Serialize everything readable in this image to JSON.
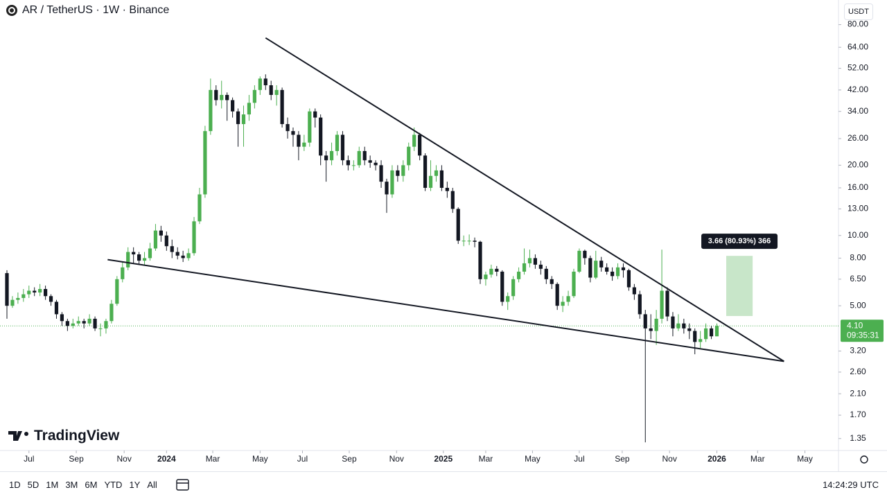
{
  "header": {
    "title": "AR / TetherUS · 1W · Binance",
    "currency": "USDT"
  },
  "brand": "TradingView",
  "toolbar": {
    "ranges": [
      "1D",
      "5D",
      "1M",
      "3M",
      "6M",
      "YTD",
      "1Y",
      "All"
    ],
    "clock": "14:24:29 UTC"
  },
  "chart_data": {
    "type": "candlestick",
    "log_scale": true,
    "up_color": "#4caf50",
    "down_color": "#131722",
    "open": [
      6.9,
      5.0,
      5.3,
      5.4,
      5.6,
      5.8,
      5.7,
      5.9,
      5.5,
      5.2,
      4.6,
      4.3,
      4.1,
      4.2,
      4.3,
      4.2,
      4.4,
      4.0,
      4.0,
      4.3,
      5.1,
      6.5,
      7.3,
      8.5,
      8.3,
      7.8,
      8.0,
      8.8,
      10.5,
      10.0,
      9.0,
      8.5,
      8.2,
      8.0,
      8.4,
      11.5,
      15,
      28,
      42,
      38,
      40,
      38,
      34,
      30,
      33,
      37,
      42,
      47,
      44,
      40,
      42,
      30,
      28,
      27,
      24,
      25,
      34,
      32,
      22,
      21,
      23,
      27,
      21,
      20,
      20,
      23,
      21,
      20.5,
      20,
      17,
      15,
      19,
      18,
      20,
      24,
      27,
      22,
      16,
      18,
      19,
      16,
      15.5,
      13,
      9.5,
      9.5,
      9.5,
      9.4,
      6.5,
      6.8,
      7.2,
      7.0,
      5.2,
      5.5,
      6.5,
      7.0,
      7.6,
      8.0,
      7.5,
      7.2,
      6.5,
      6.2,
      5.0,
      5.2,
      5.5,
      7.0,
      8.6,
      8.0,
      6.6,
      7.8,
      7.3,
      7.0,
      6.7,
      7.3,
      7.1,
      6.0,
      5.6,
      4.6,
      4.0,
      3.9,
      4.4,
      5.8,
      4.5,
      4.0,
      4.2,
      4.0,
      3.9,
      3.5,
      3.6,
      4.0,
      3.7
    ],
    "high": [
      7.1,
      5.5,
      5.7,
      5.9,
      6.1,
      6.0,
      6.2,
      6.1,
      5.6,
      5.3,
      4.7,
      4.4,
      4.4,
      4.5,
      4.4,
      4.6,
      4.5,
      4.2,
      4.4,
      5.3,
      6.7,
      7.7,
      8.9,
      8.9,
      8.5,
      8.5,
      9.3,
      11.2,
      11.0,
      10.4,
      9.6,
      8.9,
      8.6,
      8.8,
      12.0,
      16,
      29.5,
      47,
      44,
      46,
      41,
      39,
      35,
      36,
      40,
      44,
      48,
      49,
      46,
      44,
      43,
      32,
      29,
      28,
      27,
      35,
      35,
      33,
      23,
      25,
      28,
      28,
      22,
      21,
      24,
      24,
      22,
      21,
      21,
      17.5,
      20,
      20,
      21,
      25,
      29,
      27.5,
      22.5,
      21,
      20,
      20,
      17,
      16,
      13.2,
      10,
      10.1,
      9.8,
      9.5,
      7.0,
      7.5,
      7.4,
      7.1,
      5.7,
      6.7,
      7.3,
      8.8,
      8.7,
      8.3,
      7.8,
      7.4,
      6.7,
      6.3,
      5.5,
      5.8,
      7.2,
      8.8,
      8.7,
      8.2,
      8.6,
      8.1,
      7.6,
      7.3,
      7.6,
      7.6,
      7.2,
      6.2,
      5.8,
      4.8,
      4.6,
      4.8,
      8.7,
      6.0,
      4.7,
      4.6,
      4.4,
      4.2,
      4.0,
      3.9,
      4.2,
      4.1,
      4.2
    ],
    "low": [
      4.4,
      4.9,
      5.1,
      5.2,
      5.4,
      5.5,
      5.5,
      5.3,
      5.0,
      4.4,
      4.1,
      3.9,
      4.0,
      4.1,
      4.0,
      4.1,
      3.9,
      3.7,
      3.8,
      4.2,
      5.0,
      6.3,
      7.1,
      7.6,
      7.5,
      7.5,
      7.8,
      8.6,
      9.4,
      8.6,
      8.0,
      7.9,
      7.7,
      7.8,
      8.2,
      11.2,
      14.5,
      27,
      36,
      35,
      31,
      32,
      24,
      24,
      31,
      35,
      40,
      42,
      38,
      36,
      29,
      26,
      24,
      21,
      23,
      24,
      29,
      20,
      17,
      20,
      22,
      20,
      19,
      19,
      19.5,
      20,
      19.5,
      19,
      16,
      12.5,
      14.5,
      17,
      17,
      19,
      23,
      21,
      15.5,
      15.5,
      17,
      15.5,
      14.5,
      12.5,
      9.2,
      9.0,
      9.1,
      8.9,
      6.2,
      6.1,
      6.6,
      6.7,
      5.0,
      4.8,
      5.3,
      6.3,
      6.8,
      7.3,
      7.2,
      6.8,
      6.2,
      5.9,
      4.8,
      4.7,
      5.0,
      5.4,
      6.9,
      7.5,
      6.3,
      6.5,
      7.0,
      6.8,
      6.4,
      6.5,
      6.6,
      5.8,
      5.3,
      4.4,
      1.3,
      3.6,
      3.4,
      4.2,
      4.3,
      3.7,
      3.9,
      3.8,
      3.6,
      3.1,
      3.3,
      3.5,
      3.6,
      3.7
    ],
    "close": [
      5.0,
      5.3,
      5.4,
      5.6,
      5.8,
      5.7,
      5.9,
      5.5,
      5.2,
      4.6,
      4.3,
      4.1,
      4.2,
      4.3,
      4.2,
      4.4,
      4.0,
      4.0,
      4.3,
      5.1,
      6.5,
      7.3,
      8.5,
      8.3,
      7.8,
      8.0,
      8.8,
      10.5,
      10.0,
      9.0,
      8.5,
      8.2,
      8.0,
      8.4,
      11.5,
      15,
      28,
      42,
      38,
      40,
      38,
      34,
      30,
      33,
      37,
      42,
      47,
      44,
      40,
      42,
      30,
      28,
      27,
      24,
      25,
      34,
      32,
      22,
      21,
      23,
      27,
      21,
      20,
      20,
      23,
      21,
      20.5,
      20,
      17,
      15,
      19,
      18,
      20,
      24,
      27,
      22,
      16,
      18,
      19,
      16,
      15.5,
      13,
      9.5,
      9.5,
      9.5,
      9.4,
      6.5,
      6.8,
      7.2,
      7.0,
      5.2,
      5.5,
      6.5,
      7.0,
      7.6,
      8.0,
      7.5,
      7.2,
      6.5,
      6.2,
      5.0,
      5.2,
      5.5,
      7.0,
      8.6,
      8.0,
      6.6,
      7.8,
      7.3,
      7.0,
      6.7,
      7.3,
      7.1,
      6.0,
      5.6,
      4.6,
      4.0,
      3.9,
      4.4,
      5.8,
      4.5,
      4.0,
      4.2,
      4.0,
      3.9,
      3.5,
      3.6,
      4.0,
      3.7,
      4.1
    ],
    "xlim": [
      -1.26,
      151.1
    ],
    "xticks": [
      {
        "value": 4.0,
        "label": "Jul"
      },
      {
        "value": 12.6,
        "label": "Sep"
      },
      {
        "value": 21.3,
        "label": "Nov"
      },
      {
        "value": 29.0,
        "label": "2024"
      },
      {
        "value": 37.4,
        "label": "Mar"
      },
      {
        "value": 46.0,
        "label": "May"
      },
      {
        "value": 53.7,
        "label": "Jul"
      },
      {
        "value": 62.2,
        "label": "Sep"
      },
      {
        "value": 70.8,
        "label": "Nov"
      },
      {
        "value": 79.3,
        "label": "2025"
      },
      {
        "value": 87.0,
        "label": "Mar"
      },
      {
        "value": 95.5,
        "label": "May"
      },
      {
        "value": 104.0,
        "label": "Jul"
      },
      {
        "value": 111.8,
        "label": "Sep"
      },
      {
        "value": 120.4,
        "label": "Nov"
      },
      {
        "value": 129.0,
        "label": "2026"
      },
      {
        "value": 136.4,
        "label": "Mar"
      },
      {
        "value": 145.0,
        "label": "May"
      }
    ],
    "ylim": [
      1.2,
      102
    ],
    "yticks": [
      {
        "value": 80,
        "label": "80.00"
      },
      {
        "value": 64,
        "label": "64.00"
      },
      {
        "value": 52,
        "label": "52.00"
      },
      {
        "value": 42,
        "label": "42.00"
      },
      {
        "value": 34,
        "label": "34.00"
      },
      {
        "value": 26,
        "label": "26.00"
      },
      {
        "value": 20,
        "label": "20.00"
      },
      {
        "value": 16,
        "label": "16.00"
      },
      {
        "value": 13,
        "label": "13.00"
      },
      {
        "value": 10,
        "label": "10.00"
      },
      {
        "value": 8,
        "label": "8.00"
      },
      {
        "value": 6.5,
        "label": "6.50"
      },
      {
        "value": 5,
        "label": "5.00"
      },
      {
        "value": 3.2,
        "label": "3.20"
      },
      {
        "value": 2.6,
        "label": "2.60"
      },
      {
        "value": 2.1,
        "label": "2.10"
      },
      {
        "value": 1.7,
        "label": "1.70"
      },
      {
        "value": 1.35,
        "label": "1.35"
      }
    ],
    "last_price": {
      "value": 4.1,
      "label": "4.10",
      "countdown": "09:35:31"
    },
    "trendlines": [
      {
        "x": [
          47.0,
          141.2
        ],
        "y": [
          70.2,
          2.89
        ]
      },
      {
        "x": [
          18.3,
          141.2
        ],
        "y": [
          7.88,
          2.89
        ]
      }
    ],
    "projection": {
      "x": [
        130.7,
        135.5
      ],
      "from": 4.52,
      "to": 8.18,
      "label": "3.66 (80.93%) 366",
      "color": "#c8e6c9"
    }
  }
}
